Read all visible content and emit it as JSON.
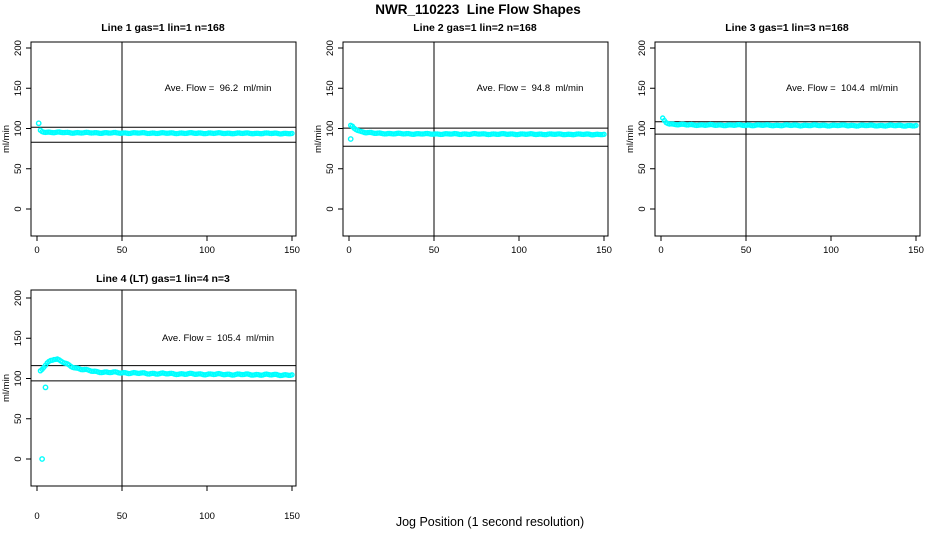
{
  "page": {
    "suptitle": "NWR_110223  Line Flow Shapes",
    "xlabel": "Jog Position (1 second resolution)",
    "background": "#ffffff",
    "point_color": "#00ffff",
    "axis_color": "#000000"
  },
  "chart_data": [
    {
      "type": "scatter",
      "title": "Line 1 gas=1 lin=1 n=168",
      "annotation": "Ave. Flow =  96.2  ml/min",
      "ave_flow": 96.2,
      "n": 168,
      "ylabel": "ml/min",
      "xlim": [
        0,
        150
      ],
      "ylim": [
        0,
        200
      ],
      "x_ticks": [
        0,
        50,
        100,
        150
      ],
      "y_ticks": [
        0,
        50,
        100,
        150,
        200
      ],
      "vline_x": 50,
      "ref_lines": [
        101.5,
        83
      ],
      "noise": 0.6,
      "profile": [
        [
          2,
          97.5
        ],
        [
          3,
          96.2
        ],
        [
          5,
          95.6
        ],
        [
          10,
          95.2
        ],
        [
          20,
          94.8
        ],
        [
          40,
          94.5
        ],
        [
          70,
          94.3
        ],
        [
          100,
          94.2
        ],
        [
          150,
          93.8
        ]
      ],
      "outliers": [
        [
          1,
          106.5
        ]
      ]
    },
    {
      "type": "scatter",
      "title": "Line 2 gas=1 lin=2 n=168",
      "annotation": "Ave. Flow =  94.8  ml/min",
      "ave_flow": 94.8,
      "n": 168,
      "ylabel": "ml/min",
      "xlim": [
        0,
        150
      ],
      "ylim": [
        0,
        200
      ],
      "x_ticks": [
        0,
        50,
        100,
        150
      ],
      "y_ticks": [
        0,
        50,
        100,
        150,
        200
      ],
      "vline_x": 50,
      "ref_lines": [
        100.5,
        78
      ],
      "noise": 0.6,
      "profile": [
        [
          1,
          103.5
        ],
        [
          2,
          102.5
        ],
        [
          3,
          100.5
        ],
        [
          5,
          98
        ],
        [
          7,
          96.3
        ],
        [
          10,
          95
        ],
        [
          15,
          94.2
        ],
        [
          25,
          93.6
        ],
        [
          50,
          93.2
        ],
        [
          100,
          93
        ],
        [
          150,
          92.7
        ]
      ],
      "outliers": [
        [
          1,
          87
        ]
      ]
    },
    {
      "type": "scatter",
      "title": "Line 3 gas=1 lin=3 n=168",
      "annotation": "Ave. Flow =  104.4  ml/min",
      "ave_flow": 104.4,
      "n": 168,
      "ylabel": "ml/min",
      "xlim": [
        0,
        150
      ],
      "ylim": [
        0,
        200
      ],
      "x_ticks": [
        0,
        50,
        100,
        150
      ],
      "y_ticks": [
        0,
        50,
        100,
        150,
        200
      ],
      "vline_x": 50,
      "ref_lines": [
        108.5,
        93
      ],
      "noise": 0.7,
      "profile": [
        [
          1,
          112.5
        ],
        [
          2,
          109.5
        ],
        [
          3,
          107.5
        ],
        [
          5,
          106
        ],
        [
          8,
          105.2
        ],
        [
          15,
          104.6
        ],
        [
          30,
          104.3
        ],
        [
          70,
          104
        ],
        [
          110,
          103.8
        ],
        [
          150,
          103.6
        ]
      ],
      "outliers": []
    },
    {
      "type": "scatter",
      "title": "Line 4 (LT) gas=1 lin=4 n=3",
      "annotation": "Ave. Flow =  105.4  ml/min",
      "ave_flow": 105.4,
      "n": 3,
      "ylabel": "ml/min",
      "xlim": [
        0,
        150
      ],
      "ylim": [
        0,
        200
      ],
      "x_ticks": [
        0,
        50,
        100,
        150
      ],
      "y_ticks": [
        0,
        50,
        100,
        150,
        200
      ],
      "vline_x": 50,
      "ref_lines": [
        116,
        97
      ],
      "noise": 0.9,
      "profile": [
        [
          2,
          109
        ],
        [
          3,
          111.5
        ],
        [
          4,
          114.5
        ],
        [
          6,
          119.5
        ],
        [
          8,
          122.5
        ],
        [
          10,
          124
        ],
        [
          12,
          123.5
        ],
        [
          14,
          121.5
        ],
        [
          16,
          119.5
        ],
        [
          18,
          117.5
        ],
        [
          20,
          115.5
        ],
        [
          23,
          113
        ],
        [
          26,
          111.5
        ],
        [
          30,
          110
        ],
        [
          35,
          108.5
        ],
        [
          40,
          107.8
        ],
        [
          50,
          107.2
        ],
        [
          60,
          106.5
        ],
        [
          75,
          106
        ],
        [
          90,
          105.6
        ],
        [
          105,
          105.3
        ],
        [
          120,
          105
        ],
        [
          135,
          104.7
        ],
        [
          150,
          104.4
        ]
      ],
      "outliers": [
        [
          3,
          0
        ],
        [
          5,
          89
        ]
      ]
    }
  ]
}
